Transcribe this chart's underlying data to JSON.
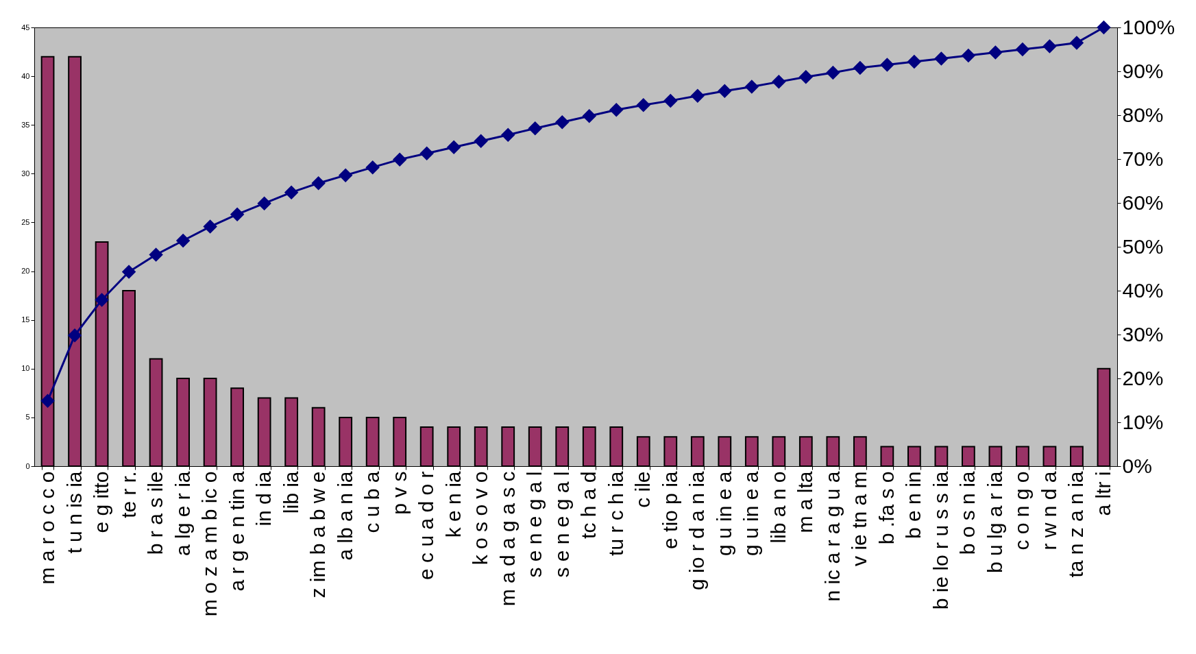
{
  "chart_data": {
    "type": "bar",
    "categories": [
      "m a r o c c o",
      "t u n is ia",
      "e g itto",
      "te r r.",
      "b r a s ile",
      "a lg e r ia",
      "m o z a m b ic o",
      "a r g e n tin a",
      "in d ia",
      "lib ia",
      "z im b a b w e",
      "a lb a n ia",
      "c u b a",
      "p v s",
      "e c u a d o r",
      "k e n ia",
      "k o s o v o",
      "m a d a g a s c",
      "s e n e g a l",
      "s e n e g a l",
      "tc h a d",
      "tu r c h ia",
      "c ile",
      "e tio p ia",
      "g io r d a n ia",
      "g u in e a",
      "g u in e a",
      "lib a n o",
      "m a lta",
      "n ic a r a g u a",
      "v ie tn a m",
      "b .fa s o",
      "b e n in",
      "b ie lo r u s s ia",
      "b o s n ia",
      "b u lg a r ia",
      "c o n g o",
      "r w n d a",
      "ta n z a n ia",
      "a ltr i"
    ],
    "series": [
      {
        "color": "#993366",
        "values": [
          42,
          42,
          23,
          18,
          11,
          9,
          9,
          8,
          7,
          7,
          6,
          5,
          5,
          5,
          4,
          4,
          4,
          4,
          4,
          4,
          4,
          4,
          3,
          3,
          3,
          3,
          3,
          3,
          3,
          3,
          3,
          2,
          2,
          2,
          2,
          2,
          2,
          2,
          2,
          10
        ]
      },
      {
        "type": "line",
        "axis": "y2",
        "color": "#000080",
        "values": [
          14.9,
          29.8,
          37.9,
          44.3,
          48.2,
          51.4,
          54.6,
          57.4,
          59.9,
          62.4,
          64.5,
          66.3,
          68.1,
          69.9,
          71.3,
          72.7,
          74.1,
          75.5,
          77.0,
          78.4,
          79.8,
          81.2,
          82.3,
          83.3,
          84.4,
          85.5,
          86.5,
          87.6,
          88.7,
          89.7,
          90.8,
          91.5,
          92.2,
          92.9,
          93.6,
          94.3,
          95.0,
          95.7,
          96.5,
          100
        ]
      }
    ],
    "ylim": [
      0,
      45
    ],
    "yticks": [
      0,
      5,
      10,
      15,
      20,
      25,
      30,
      35,
      40,
      45
    ],
    "y2lim": [
      0,
      100
    ],
    "y2ticks": [
      {
        "value": 0,
        "label": "0%"
      },
      {
        "value": 10,
        "label": "10%"
      },
      {
        "value": 20,
        "label": "20%"
      },
      {
        "value": 30,
        "label": "30%"
      },
      {
        "value": 40,
        "label": "40%"
      },
      {
        "value": 50,
        "label": "50%"
      },
      {
        "value": 60,
        "label": "60%"
      },
      {
        "value": 70,
        "label": "70%"
      },
      {
        "value": 80,
        "label": "80%"
      },
      {
        "value": 90,
        "label": "90%"
      },
      {
        "value": 100,
        "label": "100%"
      }
    ],
    "marker": "diamond",
    "grid": false
  }
}
